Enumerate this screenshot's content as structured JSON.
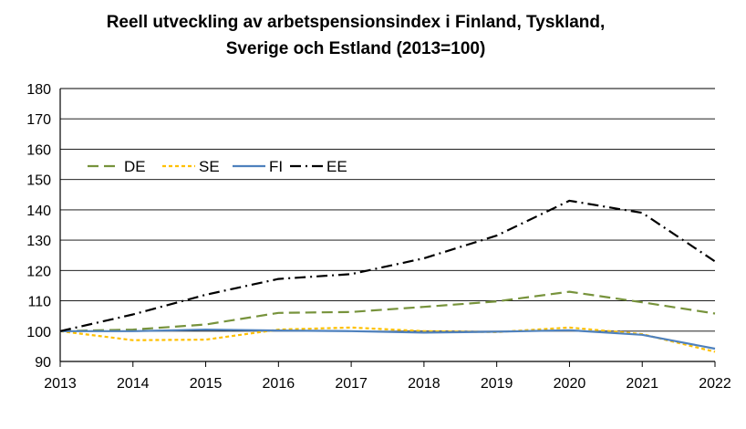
{
  "chart_data": {
    "type": "line",
    "title_line1": "Reell utveckling av arbetspensionsindex i Finland, Tyskland,",
    "title_line2": "Sverige och Estland (2013=100)",
    "xlabel": "",
    "ylabel": "",
    "x": [
      "2013",
      "2014",
      "2015",
      "2016",
      "2017",
      "2018",
      "2019",
      "2020",
      "2021",
      "2022"
    ],
    "yticks": [
      "90",
      "100",
      "110",
      "120",
      "130",
      "140",
      "150",
      "160",
      "170",
      "180"
    ],
    "ylim": [
      90,
      180
    ],
    "grid": "horizontal",
    "legend_position": "top-left",
    "series": [
      {
        "name": "DE",
        "color": "#77933C",
        "dash": "dashed",
        "values": [
          100,
          100.5,
          102.2,
          106,
          106.3,
          108,
          109.8,
          113,
          109.5,
          105.8
        ]
      },
      {
        "name": "SE",
        "color": "#FFC000",
        "dash": "dotted",
        "values": [
          100,
          97,
          97.2,
          100.5,
          101.2,
          100,
          99.7,
          101.2,
          99,
          93.2
        ]
      },
      {
        "name": "FI",
        "color": "#4F81BD",
        "dash": "solid",
        "values": [
          100,
          100,
          100.5,
          100.2,
          100,
          99.5,
          99.8,
          100.3,
          98.8,
          94.2
        ]
      },
      {
        "name": "EE",
        "color": "#000000",
        "dash": "dashdot",
        "values": [
          100,
          105.5,
          112,
          117.2,
          118.8,
          124,
          131.5,
          143,
          139,
          123
        ]
      }
    ]
  }
}
